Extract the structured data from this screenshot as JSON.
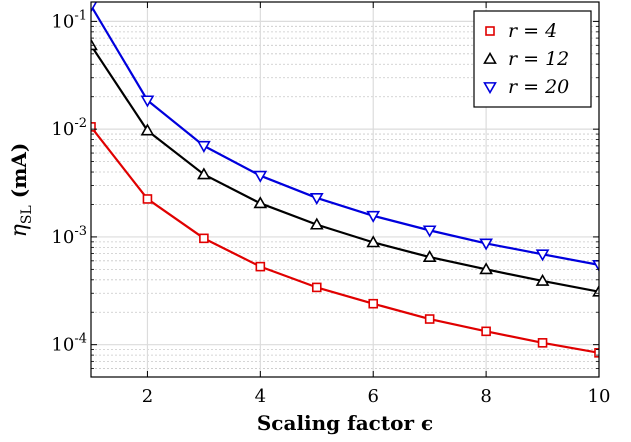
{
  "chart_data": {
    "type": "line",
    "title": "",
    "xlabel": "Scaling factor ϵ",
    "ylabel": "η_SL (mA)",
    "ylabel_symbol": "η",
    "ylabel_subscript": "SL",
    "ylabel_unit": "(mA)",
    "xlim": [
      1,
      10
    ],
    "ylim": [
      5e-05,
      0.15
    ],
    "yscale": "log",
    "grid": true,
    "minor_grid": true,
    "legend_position": "top-right",
    "x_ticks": [
      "2",
      "4",
      "6",
      "8",
      "10"
    ],
    "y_ticks": [
      {
        "base": "10",
        "exp": "-1"
      },
      {
        "base": "10",
        "exp": "-2"
      },
      {
        "base": "10",
        "exp": "-3"
      },
      {
        "base": "10",
        "exp": "-4"
      }
    ],
    "x": [
      1,
      2,
      3,
      4,
      5,
      6,
      7,
      8,
      9,
      10
    ],
    "series": [
      {
        "name": "r = 4",
        "color": "#e00000",
        "marker": "square",
        "values": [
          0.0105,
          0.00225,
          0.00097,
          0.00053,
          0.00034,
          0.00024,
          0.000173,
          0.000133,
          0.000104,
          8.4e-05
        ]
      },
      {
        "name": "r = 12",
        "color": "#000000",
        "marker": "triangle-up",
        "values": [
          0.06,
          0.0097,
          0.0038,
          0.00205,
          0.0013,
          0.00089,
          0.00065,
          0.0005,
          0.00039,
          0.00031
        ]
      },
      {
        "name": "r = 20",
        "color": "#0000dd",
        "marker": "triangle-down",
        "values": [
          0.14,
          0.0185,
          0.007,
          0.0037,
          0.0023,
          0.00157,
          0.00115,
          0.00087,
          0.00069,
          0.00055
        ]
      }
    ]
  }
}
